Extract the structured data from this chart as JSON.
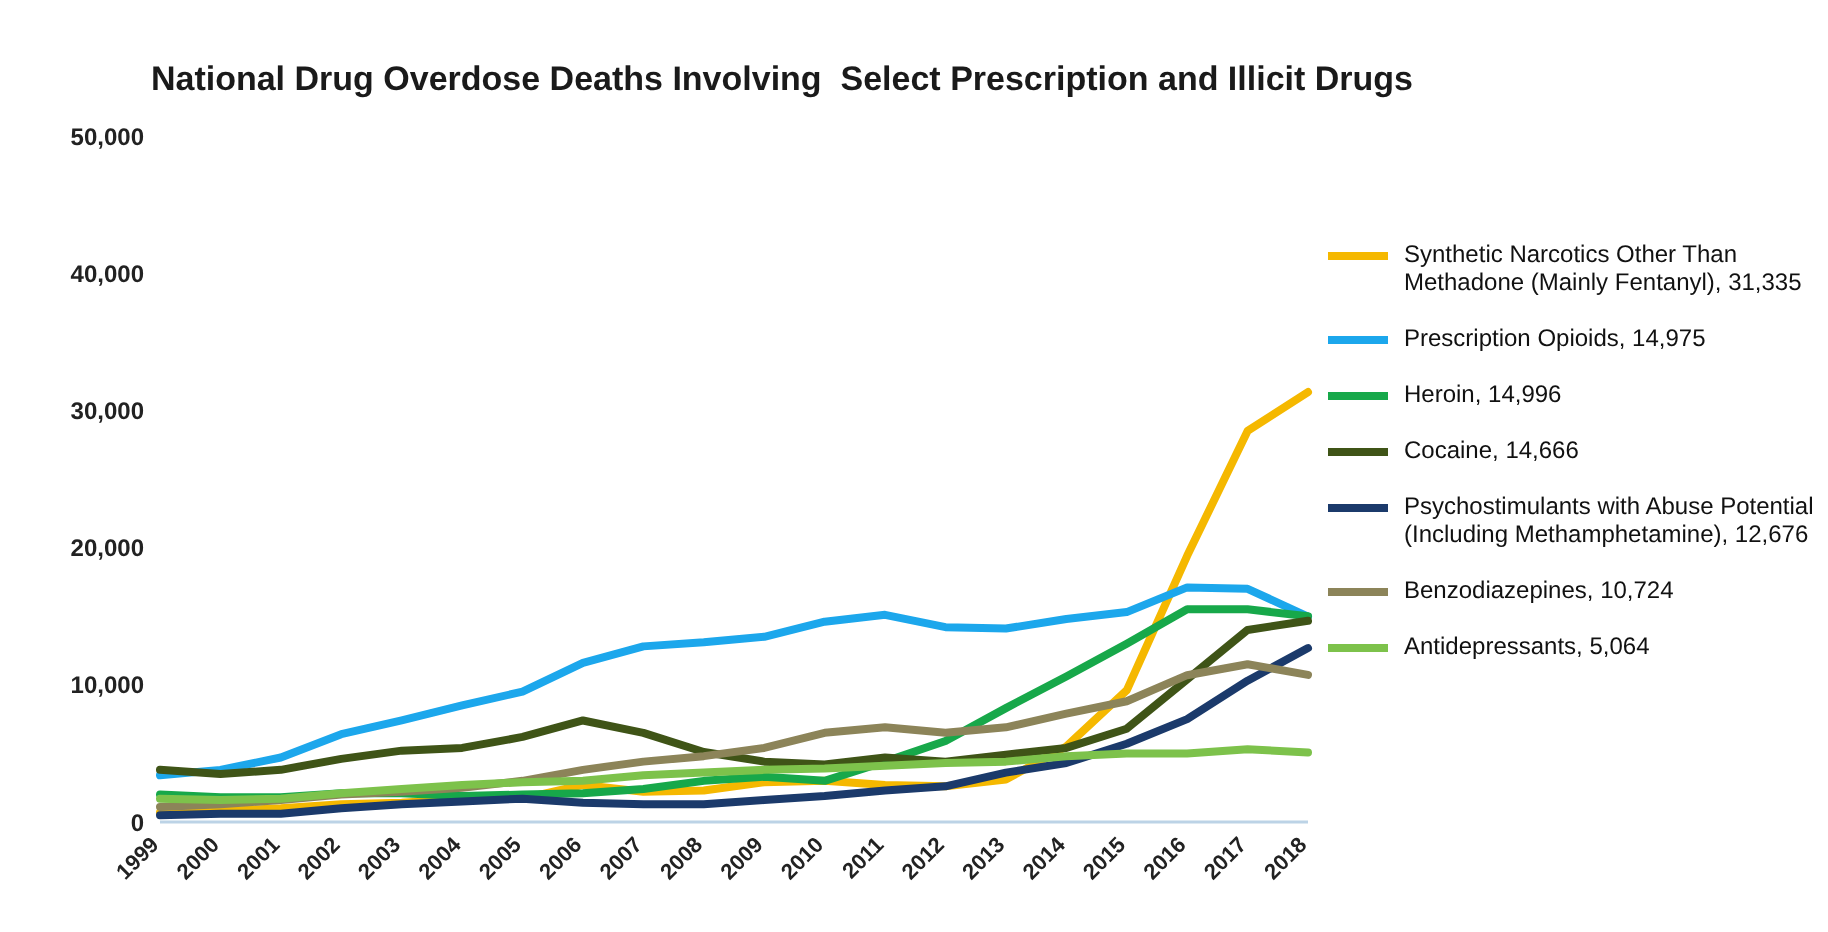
{
  "chart_data": {
    "type": "line",
    "title": "National Drug Overdose Deaths Involving  Select Prescription and Illicit Drugs",
    "categories": [
      "1999",
      "2000",
      "2001",
      "2002",
      "2003",
      "2004",
      "2005",
      "2006",
      "2007",
      "2008",
      "2009",
      "2010",
      "2011",
      "2012",
      "2013",
      "2014",
      "2015",
      "2016",
      "2017",
      "2018"
    ],
    "series": [
      {
        "name": "Synthetic Narcotics Other Than Methadone (Mainly Fentanyl), 31,335",
        "color": "#f5b800",
        "values": [
          700,
          800,
          1000,
          1300,
          1400,
          1700,
          1700,
          2700,
          2200,
          2300,
          2900,
          3000,
          2700,
          2600,
          3100,
          5500,
          9600,
          19400,
          28500,
          31335
        ]
      },
      {
        "name": "Prescription Opioids, 14,975",
        "color": "#1ca7ec",
        "values": [
          3400,
          3800,
          4700,
          6400,
          7400,
          8500,
          9500,
          11600,
          12800,
          13100,
          13500,
          14600,
          15100,
          14200,
          14100,
          14800,
          15300,
          17100,
          17000,
          14975
        ]
      },
      {
        "name": "Heroin, 14,996",
        "color": "#17a84a",
        "values": [
          2000,
          1800,
          1800,
          2100,
          2100,
          1900,
          2000,
          2100,
          2400,
          3000,
          3300,
          3000,
          4400,
          5900,
          8300,
          10600,
          13000,
          15500,
          15500,
          14996
        ]
      },
      {
        "name": "Cocaine, 14,666",
        "color": "#3f5417",
        "values": [
          3800,
          3500,
          3800,
          4600,
          5200,
          5400,
          6200,
          7400,
          6500,
          5100,
          4400,
          4200,
          4700,
          4400,
          4900,
          5400,
          6800,
          10400,
          14000,
          14666
        ]
      },
      {
        "name": "Psychostimulants with Abuse Potential (Including Methamphetamine), 12,676",
        "color": "#1b3a6b",
        "values": [
          500,
          600,
          600,
          1000,
          1300,
          1500,
          1700,
          1400,
          1300,
          1300,
          1600,
          1900,
          2300,
          2600,
          3600,
          4300,
          5700,
          7500,
          10300,
          12676
        ]
      },
      {
        "name": "Benzodiazepines, 10,724",
        "color": "#8c8459",
        "values": [
          1100,
          1300,
          1600,
          2000,
          2200,
          2500,
          3000,
          3800,
          4400,
          4800,
          5400,
          6500,
          6900,
          6500,
          6900,
          7900,
          8800,
          10700,
          11500,
          10724
        ]
      },
      {
        "name": "Antidepressants, 5,064",
        "color": "#7dc24b",
        "values": [
          1700,
          1600,
          1700,
          2100,
          2400,
          2700,
          2900,
          3000,
          3400,
          3600,
          3800,
          3900,
          4100,
          4300,
          4400,
          4800,
          5000,
          5000,
          5300,
          5064
        ]
      }
    ],
    "ylim": [
      0,
      50000
    ],
    "yticks": [
      {
        "value": 0,
        "label": "0"
      },
      {
        "value": 10000,
        "label": "10,000"
      },
      {
        "value": 20000,
        "label": "20,000"
      },
      {
        "value": 30000,
        "label": "30,000"
      },
      {
        "value": 40000,
        "label": "40,000"
      },
      {
        "value": 50000,
        "label": "50,000"
      }
    ],
    "grid": false,
    "legend": "right",
    "marker": "none",
    "line_style": "solid"
  }
}
